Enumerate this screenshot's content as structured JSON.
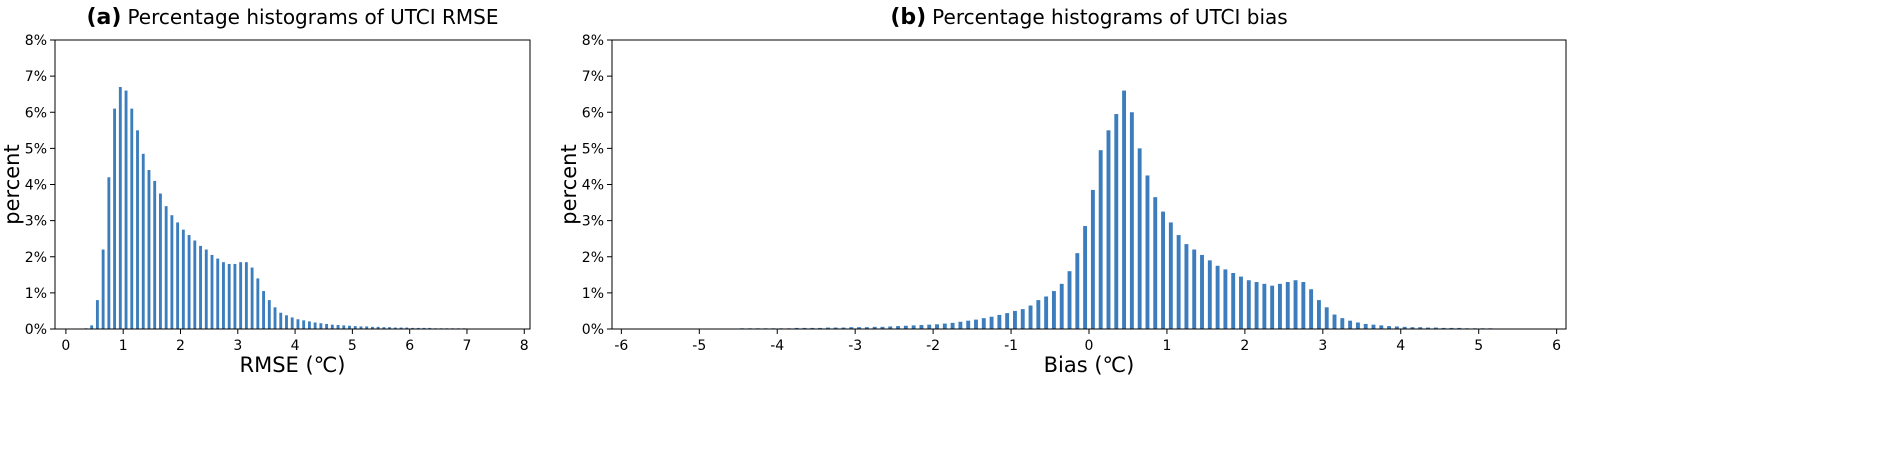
{
  "chart_data": [
    {
      "type": "histogram",
      "panel_label": "(a)",
      "title": "Percentage histograms of UTCI RMSE",
      "x_label": "RMSE (℃)",
      "y_label": "percent",
      "color": "#3b7dbd",
      "bins": [
        0,
        0.1,
        0.2,
        0.3,
        0.4,
        0.5,
        0.6,
        0.7,
        0.8,
        0.9,
        1,
        1.1,
        1.2,
        1.3,
        1.4,
        1.5,
        1.6,
        1.7,
        1.8,
        1.9,
        2,
        2.1,
        2.2,
        2.3,
        2.4,
        2.5,
        2.6,
        2.7,
        2.8,
        2.9,
        3,
        3.1,
        3.2,
        3.3,
        3.4,
        3.5,
        3.6,
        3.7,
        3.8,
        3.9,
        4,
        4.1,
        4.2,
        4.3,
        4.4,
        4.5,
        4.6,
        4.7,
        4.8,
        4.9,
        5,
        5.1,
        5.2,
        5.3,
        5.4,
        5.5,
        5.6,
        5.7,
        5.8,
        5.9,
        6,
        6.1,
        6.2,
        6.3,
        6.4,
        6.5,
        6.6,
        6.7,
        6.8,
        6.9,
        7,
        7.1,
        7.2,
        7.3,
        7.4,
        7.5,
        7.6,
        7.7,
        7.8,
        7.9,
        8
      ],
      "values": [
        0,
        0,
        0.01,
        0.02,
        0.1,
        0.8,
        2.2,
        4.2,
        6.1,
        6.7,
        6.6,
        6.1,
        5.5,
        4.85,
        4.4,
        4.1,
        3.75,
        3.4,
        3.15,
        2.95,
        2.75,
        2.6,
        2.45,
        2.3,
        2.2,
        2.05,
        1.95,
        1.85,
        1.8,
        1.8,
        1.85,
        1.85,
        1.7,
        1.4,
        1.05,
        0.8,
        0.6,
        0.45,
        0.38,
        0.32,
        0.27,
        0.24,
        0.21,
        0.18,
        0.16,
        0.14,
        0.12,
        0.11,
        0.1,
        0.09,
        0.08,
        0.07,
        0.07,
        0.06,
        0.06,
        0.05,
        0.05,
        0.04,
        0.04,
        0.04,
        0.03,
        0.03,
        0.03,
        0.03,
        0.02,
        0.02,
        0.02,
        0.02,
        0.02,
        0.02,
        0.01,
        0.01,
        0.01,
        0.01,
        0.01,
        0.01,
        0.01,
        0.01,
        0.01,
        0.01
      ],
      "xlim": [
        -0.19,
        8.1
      ],
      "xticks": [
        0,
        1,
        2,
        3,
        4,
        5,
        6,
        7,
        8
      ],
      "ylim": [
        0,
        8
      ],
      "yticks": [
        {
          "value": 0,
          "label": "0%"
        },
        {
          "value": 1,
          "label": "1%"
        },
        {
          "value": 2,
          "label": "2%"
        },
        {
          "value": 3,
          "label": "3%"
        },
        {
          "value": 4,
          "label": "4%"
        },
        {
          "value": 5,
          "label": "5%"
        },
        {
          "value": 6,
          "label": "6%"
        },
        {
          "value": 7,
          "label": "7%"
        },
        {
          "value": 8,
          "label": "8%"
        }
      ]
    },
    {
      "type": "histogram",
      "panel_label": "(b)",
      "title": "Percentage histograms of UTCI bias",
      "x_label": "Bias (℃)",
      "y_label": "percent",
      "color": "#3b7dbd",
      "bins": [
        -6,
        -5.9,
        -5.8,
        -5.7,
        -5.6,
        -5.5,
        -5.4,
        -5.3,
        -5.2,
        -5.1,
        -5,
        -4.9,
        -4.8,
        -4.7,
        -4.6,
        -4.5,
        -4.4,
        -4.3,
        -4.2,
        -4.1,
        -4,
        -3.9,
        -3.8,
        -3.7,
        -3.6,
        -3.5,
        -3.4,
        -3.3,
        -3.2,
        -3.1,
        -3,
        -2.9,
        -2.8,
        -2.7,
        -2.6,
        -2.5,
        -2.4,
        -2.3,
        -2.2,
        -2.1,
        -2,
        -1.9,
        -1.8,
        -1.7,
        -1.6,
        -1.5,
        -1.4,
        -1.3,
        -1.2,
        -1.1,
        -1,
        -0.9,
        -0.8,
        -0.7,
        -0.6,
        -0.5,
        -0.4,
        -0.3,
        -0.2,
        -0.1,
        0,
        0.1,
        0.2,
        0.3,
        0.4,
        0.5,
        0.6,
        0.7,
        0.8,
        0.9,
        1,
        1.1,
        1.2,
        1.3,
        1.4,
        1.5,
        1.6,
        1.7,
        1.8,
        1.9,
        2,
        2.1,
        2.2,
        2.3,
        2.4,
        2.5,
        2.6,
        2.7,
        2.8,
        2.9,
        3,
        3.1,
        3.2,
        3.3,
        3.4,
        3.5,
        3.6,
        3.7,
        3.8,
        3.9,
        4,
        4.1,
        4.2,
        4.3,
        4.4,
        4.5,
        4.6,
        4.7,
        4.8,
        4.9,
        5,
        5.1,
        5.2,
        5.3,
        5.4,
        5.5,
        5.6,
        5.7,
        5.8,
        5.9,
        6
      ],
      "values": [
        0,
        0,
        0,
        0,
        0,
        0,
        0.01,
        0.01,
        0.01,
        0.01,
        0.01,
        0.01,
        0.01,
        0.01,
        0.01,
        0.02,
        0.02,
        0.02,
        0.02,
        0.02,
        0.02,
        0.02,
        0.03,
        0.03,
        0.03,
        0.03,
        0.04,
        0.04,
        0.04,
        0.05,
        0.05,
        0.05,
        0.06,
        0.06,
        0.07,
        0.08,
        0.09,
        0.1,
        0.11,
        0.12,
        0.13,
        0.15,
        0.17,
        0.2,
        0.23,
        0.26,
        0.3,
        0.34,
        0.39,
        0.44,
        0.5,
        0.55,
        0.65,
        0.8,
        0.9,
        1.05,
        1.25,
        1.6,
        2.1,
        2.85,
        3.85,
        4.95,
        5.5,
        5.95,
        6.6,
        6.0,
        5.0,
        4.25,
        3.65,
        3.25,
        2.95,
        2.6,
        2.35,
        2.2,
        2.05,
        1.9,
        1.75,
        1.65,
        1.55,
        1.45,
        1.35,
        1.3,
        1.25,
        1.2,
        1.25,
        1.3,
        1.35,
        1.3,
        1.1,
        0.8,
        0.6,
        0.4,
        0.3,
        0.23,
        0.18,
        0.14,
        0.12,
        0.1,
        0.08,
        0.07,
        0.06,
        0.05,
        0.05,
        0.04,
        0.04,
        0.03,
        0.03,
        0.03,
        0.02,
        0.02,
        0.02,
        0.02,
        0.01,
        0.01,
        0.01,
        0.01,
        0.01,
        0.01,
        0.01,
        0.01
      ],
      "xlim": [
        -6.12,
        6.12
      ],
      "xticks": [
        -6,
        -5,
        -4,
        -3,
        -2,
        -1,
        0,
        1,
        2,
        3,
        4,
        5,
        6
      ],
      "ylim": [
        0,
        8
      ],
      "yticks": [
        {
          "value": 0,
          "label": "0%"
        },
        {
          "value": 1,
          "label": "1%"
        },
        {
          "value": 2,
          "label": "2%"
        },
        {
          "value": 3,
          "label": "3%"
        },
        {
          "value": 4,
          "label": "4%"
        },
        {
          "value": 5,
          "label": "5%"
        },
        {
          "value": 6,
          "label": "6%"
        },
        {
          "value": 7,
          "label": "7%"
        },
        {
          "value": 8,
          "label": "8%"
        }
      ]
    }
  ]
}
